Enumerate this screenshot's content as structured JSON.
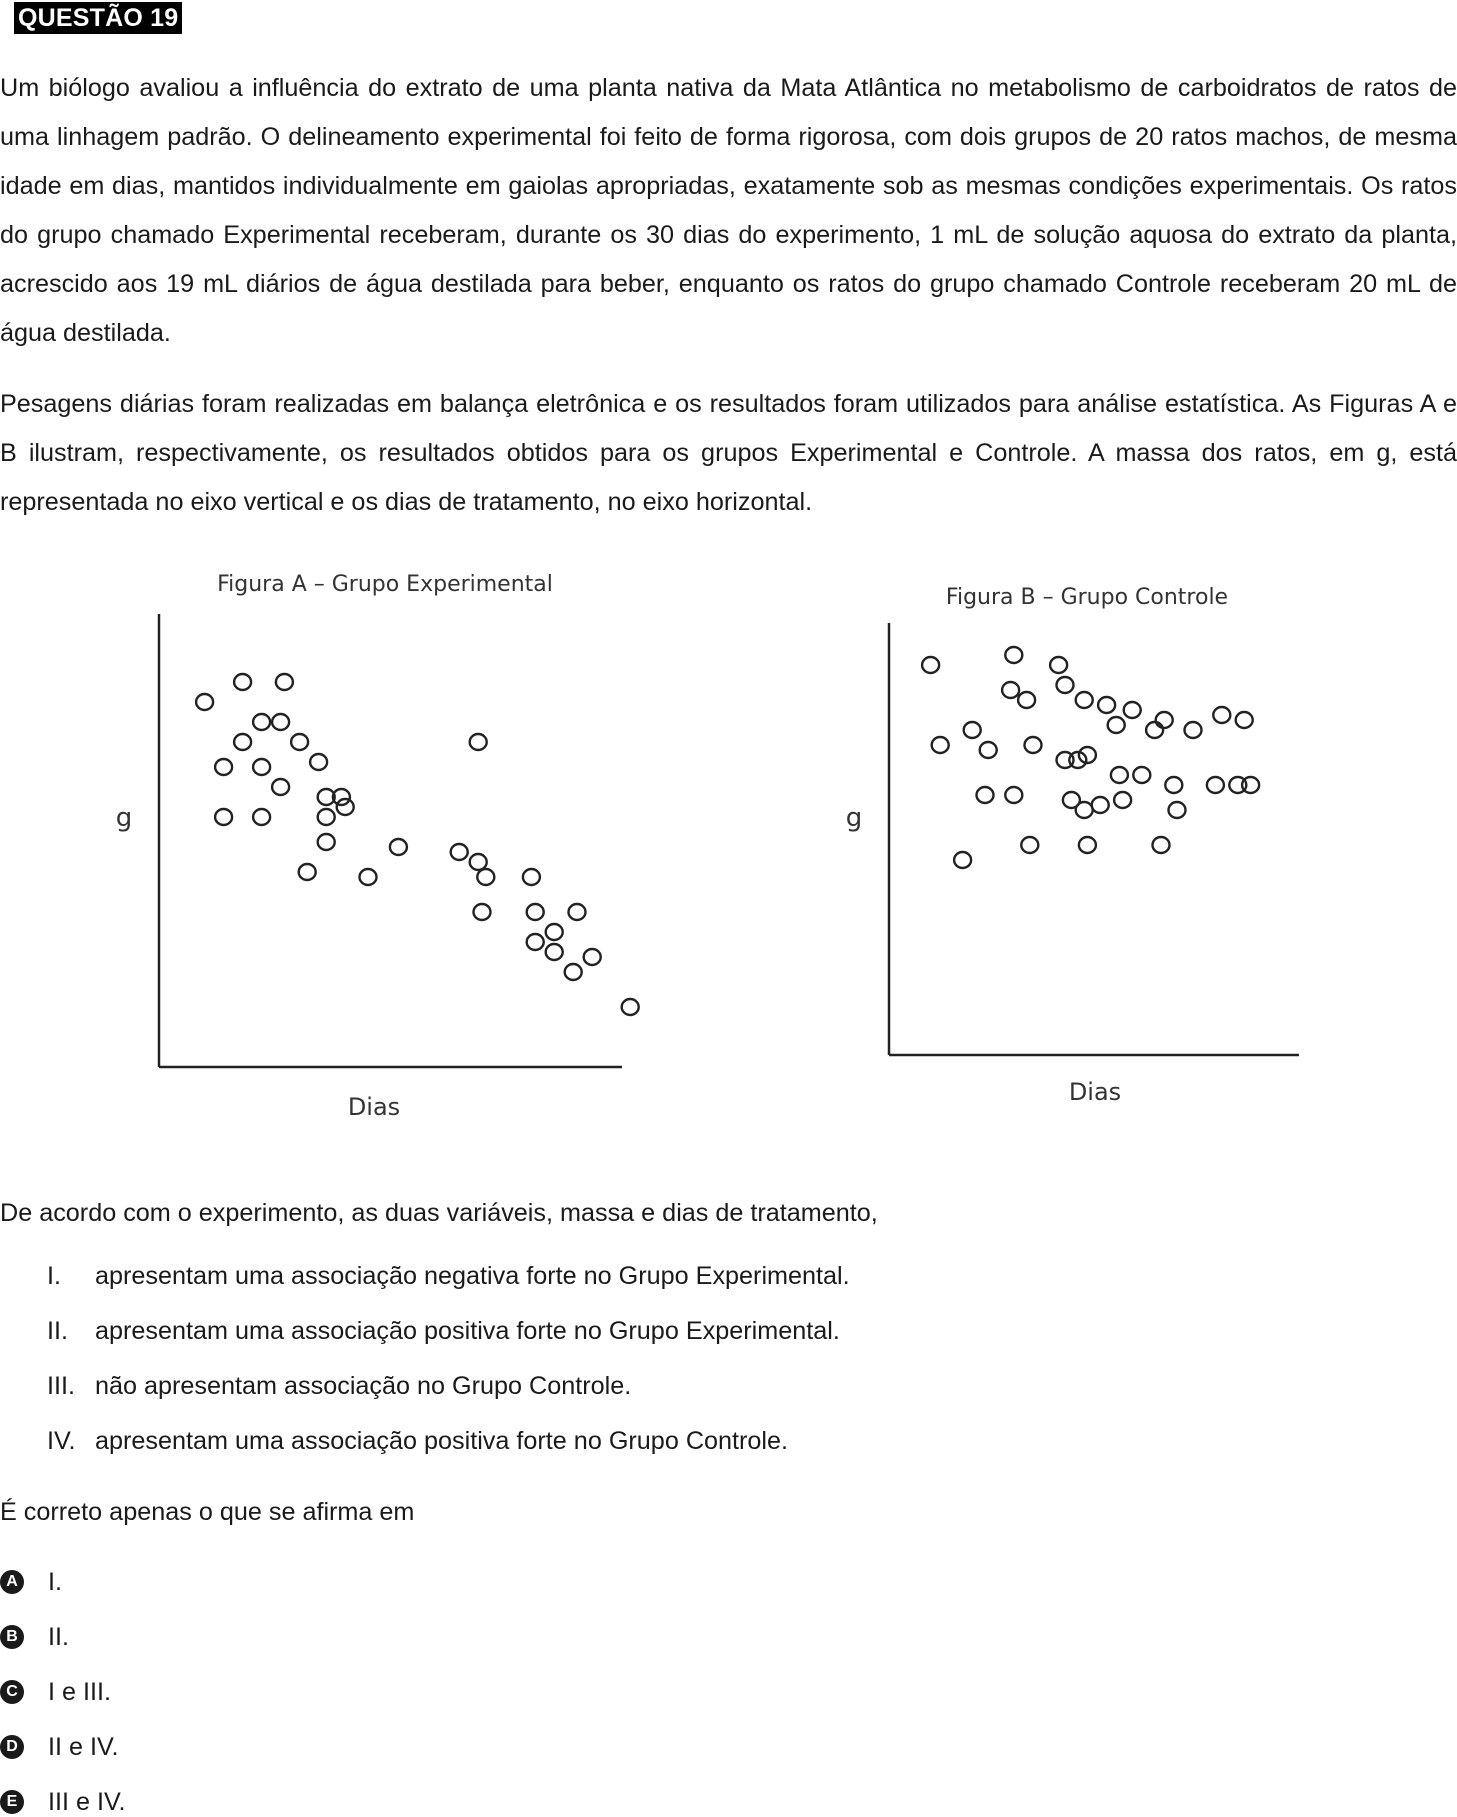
{
  "question": {
    "title": "QUESTÃO 19",
    "paragraph1": "Um biólogo avaliou a influência do extrato de uma planta nativa da Mata Atlântica no metabolismo de carboidratos de ratos de uma linhagem padrão.  O delineamento experimental foi feito de forma rigorosa, com dois grupos de 20 ratos machos, de mesma idade em dias, mantidos individualmente em gaiolas apropriadas, exatamente sob as mesmas condições experimentais. Os ratos do grupo chamado Experimental receberam, durante os 30 dias do experimento, 1 mL de solução aquosa do extrato da planta, acrescido aos 19 mL diários de água destilada para beber, enquanto os ratos do grupo chamado Controle receberam 20 mL de água destilada.",
    "paragraph2": "Pesagens diárias foram realizadas em balança eletrônica e os resultados foram utilizados para análise estatística. As Figuras A e B ilustram, respectivamente, os resultados obtidos para os grupos Experimental e Controle. A massa dos ratos, em g, está representada no eixo vertical e os dias de tratamento, no eixo horizontal.",
    "lead": "De acordo com o experimento, as duas variáveis, massa e dias de tratamento,",
    "statements": [
      {
        "num": "I.",
        "text": "apresentam uma associação negativa forte no Grupo Experimental."
      },
      {
        "num": "II.",
        "text": "apresentam uma associação positiva forte no Grupo Experimental."
      },
      {
        "num": "III.",
        "text": "não apresentam associação no Grupo Controle."
      },
      {
        "num": "IV.",
        "text": "apresentam uma associação positiva forte no Grupo Controle."
      }
    ],
    "prompt": "É correto apenas o que se afirma em",
    "options": [
      {
        "letter": "A",
        "text": "I."
      },
      {
        "letter": "B",
        "text": "II."
      },
      {
        "letter": "C",
        "text": "I e III."
      },
      {
        "letter": "D",
        "text": "II e IV."
      },
      {
        "letter": "E",
        "text": "III e IV."
      }
    ]
  },
  "chart_data": [
    {
      "type": "scatter",
      "title": "Figura A – Grupo Experimental",
      "xlabel": "Dias",
      "ylabel": "g",
      "grid": false,
      "x": [
        1.2,
        2.2,
        3.3,
        2.7,
        3.2,
        2.2,
        3.7,
        1.7,
        2.7,
        4.2,
        3.2,
        4.4,
        4.8,
        4.4,
        1.7,
        2.7,
        4.9,
        4.4,
        8.4,
        6.3,
        7.9,
        8.4,
        3.9,
        5.5,
        8.6,
        9.8,
        8.5,
        9.9,
        11.0,
        9.9,
        10.4,
        10.4,
        11.4,
        10.9,
        12.4
      ],
      "y": [
        7.3,
        7.7,
        7.7,
        6.9,
        6.9,
        6.5,
        6.5,
        6.0,
        6.0,
        6.1,
        5.6,
        5.4,
        5.4,
        5.0,
        5.0,
        5.0,
        5.2,
        4.5,
        6.5,
        4.4,
        4.3,
        4.1,
        3.9,
        3.8,
        3.8,
        3.8,
        3.1,
        3.1,
        3.1,
        2.5,
        2.3,
        2.7,
        2.2,
        1.9,
        1.2
      ]
    },
    {
      "type": "scatter",
      "title": "Figura B – Grupo Controle",
      "xlabel": "Dias",
      "ylabel": "g",
      "grid": false,
      "x": [
        1.3,
        3.9,
        5.3,
        5.5,
        3.8,
        4.3,
        6.1,
        6.8,
        7.6,
        7.1,
        8.3,
        9.5,
        8.6,
        10.4,
        11.1,
        1.6,
        2.6,
        3.1,
        4.5,
        5.5,
        5.9,
        6.2,
        7.2,
        7.9,
        8.9,
        10.2,
        10.9,
        11.3,
        3.0,
        3.9,
        5.7,
        6.1,
        6.6,
        7.3,
        9.0,
        2.3,
        4.4,
        6.2,
        8.5
      ],
      "y": [
        7.8,
        8.0,
        7.8,
        7.4,
        7.3,
        7.1,
        7.1,
        7.0,
        6.9,
        6.6,
        6.5,
        6.5,
        6.7,
        6.8,
        6.7,
        6.2,
        6.5,
        6.1,
        6.2,
        5.9,
        5.9,
        6.0,
        5.6,
        5.6,
        5.4,
        5.4,
        5.4,
        5.4,
        5.2,
        5.2,
        5.1,
        4.9,
        5.0,
        5.1,
        4.9,
        3.9,
        4.2,
        4.2,
        4.2
      ]
    }
  ]
}
